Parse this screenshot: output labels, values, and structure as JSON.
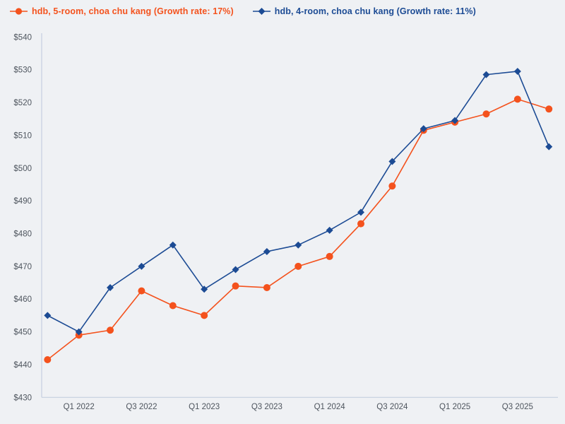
{
  "legend": {
    "items": [
      {
        "label": "hdb, 5-room, choa chu kang (Growth rate: 17%)",
        "color": "#f4521d",
        "marker": "circle"
      },
      {
        "label": "hdb, 4-room, choa chu kang (Growth rate: 11%)",
        "color": "#1c4b94",
        "marker": "diamond"
      }
    ]
  },
  "chart_data": {
    "type": "line",
    "title": "",
    "categories": [
      "Q4 2021",
      "Q1 2022",
      "Q2 2022",
      "Q3 2022",
      "Q4 2022",
      "Q1 2023",
      "Q2 2023",
      "Q3 2023",
      "Q4 2023",
      "Q1 2024",
      "Q2 2024",
      "Q3 2024",
      "Q4 2024",
      "Q1 2025",
      "Q2 2025",
      "Q3 2025",
      "Q4 2025"
    ],
    "series": [
      {
        "name": "hdb, 5-room, choa chu kang",
        "growth_rate": "17%",
        "color": "#f4521d",
        "marker": "circle",
        "values": [
          441.5,
          449,
          450.5,
          462.5,
          458,
          455,
          464,
          463.5,
          470,
          473,
          483,
          494.5,
          511.5,
          514,
          516.5,
          521,
          518
        ]
      },
      {
        "name": "hdb, 4-room, choa chu kang",
        "growth_rate": "11%",
        "color": "#1c4b94",
        "marker": "diamond",
        "values": [
          455,
          450,
          463.5,
          470,
          476.5,
          463,
          469,
          474.5,
          476.5,
          481,
          486.5,
          502,
          512,
          514.5,
          528.5,
          529.5,
          506.5
        ]
      }
    ],
    "ylim": [
      430,
      540
    ],
    "y_ticks": [
      {
        "value": 430,
        "label": "$430"
      },
      {
        "value": 440,
        "label": "$440"
      },
      {
        "value": 450,
        "label": "$450"
      },
      {
        "value": 460,
        "label": "$460"
      },
      {
        "value": 470,
        "label": "$470"
      },
      {
        "value": 480,
        "label": "$480"
      },
      {
        "value": 490,
        "label": "$490"
      },
      {
        "value": 500,
        "label": "$500"
      },
      {
        "value": 510,
        "label": "$510"
      },
      {
        "value": 520,
        "label": "$520"
      },
      {
        "value": 530,
        "label": "$530"
      },
      {
        "value": 540,
        "label": "$540"
      }
    ],
    "x_ticks": [
      {
        "index": 1,
        "label": "Q1 2022"
      },
      {
        "index": 3,
        "label": "Q3 2022"
      },
      {
        "index": 5,
        "label": "Q1 2023"
      },
      {
        "index": 7,
        "label": "Q3 2023"
      },
      {
        "index": 9,
        "label": "Q1 2024"
      },
      {
        "index": 11,
        "label": "Q3 2024"
      },
      {
        "index": 13,
        "label": "Q1 2025"
      },
      {
        "index": 15,
        "label": "Q3 2025"
      }
    ],
    "grid": false,
    "legend_position": "top-left"
  },
  "colors": {
    "background": "#eff1f4",
    "axis_line": "#c5cfe0",
    "tick_text": "#4e555e"
  }
}
